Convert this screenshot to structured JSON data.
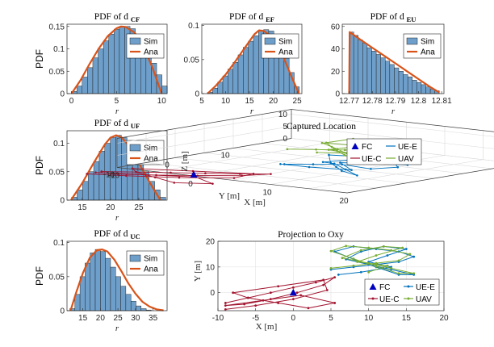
{
  "colors": {
    "hist": "#6e9fcb",
    "line": "#d95319",
    "uec": "#a2142f",
    "uee": "#0072bd",
    "uav": "#77ac30",
    "fc": "#0000c0"
  },
  "chart_data": [
    {
      "id": "cf",
      "type": "bar",
      "title": "PDF of d",
      "title_sub": "CF",
      "xlabel": "r",
      "ylabel": "PDF",
      "xlim": [
        -0.5,
        10.6
      ],
      "ylim": [
        0,
        0.155
      ],
      "xticks": [
        "0",
        "5",
        "10"
      ],
      "xtick_values": [
        0,
        5,
        10
      ],
      "yticks": [
        "0",
        "0.05",
        "0.1",
        "0.15"
      ],
      "ytick_values": [
        0,
        0.05,
        0.1,
        0.15
      ],
      "legend": [
        "Sim",
        "Ana"
      ],
      "legend_position": "top-right",
      "bin_start": 0,
      "bin_width": 0.59,
      "values": [
        0.005,
        0.017,
        0.037,
        0.058,
        0.08,
        0.1,
        0.118,
        0.133,
        0.144,
        0.15,
        0.15,
        0.145,
        0.133,
        0.115,
        0.093,
        0.068,
        0.042,
        0.017
      ],
      "curve": {
        "x": [
          0,
          1,
          2,
          3,
          4,
          5,
          5.5,
          6,
          7,
          8,
          9,
          10
        ],
        "y": [
          0,
          0.03,
          0.066,
          0.1,
          0.128,
          0.146,
          0.15,
          0.149,
          0.136,
          0.105,
          0.057,
          0
        ]
      }
    },
    {
      "id": "ef",
      "type": "bar",
      "title": "PDF of d",
      "title_sub": "EF",
      "xlabel": "r",
      "ylabel": "",
      "xlim": [
        5,
        26
      ],
      "ylim": [
        0,
        0.102
      ],
      "xticks": [
        "5",
        "10",
        "15",
        "20",
        "25"
      ],
      "xtick_values": [
        5,
        10,
        15,
        20,
        25
      ],
      "yticks": [
        "0",
        "0.05",
        "0.1"
      ],
      "ytick_values": [
        0,
        0.05,
        0.1
      ],
      "legend": [
        "Sim",
        "Ana"
      ],
      "legend_position": "top-right",
      "bin_start": 6.2,
      "bin_width": 1.07,
      "values": [
        0.002,
        0.008,
        0.017,
        0.026,
        0.036,
        0.046,
        0.057,
        0.068,
        0.077,
        0.085,
        0.092,
        0.094,
        0.092,
        0.086,
        0.07,
        0.052,
        0.031,
        0.01
      ],
      "curve": {
        "x": [
          6.2,
          8,
          10,
          12,
          14,
          16,
          17,
          18,
          20,
          22,
          24,
          25.4
        ],
        "y": [
          0,
          0.012,
          0.028,
          0.047,
          0.067,
          0.087,
          0.093,
          0.092,
          0.082,
          0.056,
          0.022,
          0
        ]
      }
    },
    {
      "id": "eu",
      "type": "bar",
      "title": "PDF of d",
      "title_sub": "EU",
      "xlabel": "r",
      "ylabel": "",
      "xlim": [
        12.767,
        12.811
      ],
      "ylim": [
        0,
        62
      ],
      "xticks": [
        "12.77",
        "12.78",
        "12.79",
        "12.8",
        "12.81"
      ],
      "xtick_values": [
        12.77,
        12.78,
        12.79,
        12.8,
        12.81
      ],
      "yticks": [
        "0",
        "20",
        "40",
        "60"
      ],
      "ytick_values": [
        0,
        20,
        40,
        60
      ],
      "legend": [
        "Sim",
        "Ana"
      ],
      "legend_position": "top-right",
      "bin_start": 12.77,
      "bin_width": 0.00195,
      "values": [
        55,
        52,
        48,
        45,
        41,
        38,
        35,
        32,
        29,
        26,
        23,
        20,
        17,
        15,
        12,
        10,
        8,
        6,
        4,
        2.5
      ],
      "curve": {
        "x": [
          12.77,
          12.7702,
          12.775,
          12.78,
          12.785,
          12.79,
          12.795,
          12.8,
          12.805,
          12.809
        ],
        "y": [
          0,
          55,
          48,
          41,
          34,
          27,
          20,
          13,
          6,
          1
        ]
      }
    },
    {
      "id": "uf",
      "type": "bar",
      "title": "PDF of d",
      "title_sub": "UF",
      "xlabel": "r",
      "ylabel": "PDF",
      "xlim": [
        12.3,
        30
      ],
      "ylim": [
        0,
        0.122
      ],
      "xticks": [
        "15",
        "20",
        "25"
      ],
      "xtick_values": [
        15,
        20,
        25
      ],
      "yticks": [
        "0",
        "0.05",
        "0.1"
      ],
      "ytick_values": [
        0,
        0.05,
        0.1
      ],
      "legend": [
        "Sim",
        "Ana"
      ],
      "legend_position": "top-right",
      "bin_start": 13.1,
      "bin_width": 0.98,
      "values": [
        0.005,
        0.018,
        0.033,
        0.05,
        0.068,
        0.086,
        0.1,
        0.11,
        0.114,
        0.11,
        0.1,
        0.086,
        0.068,
        0.05,
        0.033,
        0.018,
        0.005
      ],
      "curve": {
        "x": [
          13,
          15,
          17,
          19,
          20,
          21,
          22,
          23,
          25,
          27,
          28.8
        ],
        "y": [
          0,
          0.03,
          0.065,
          0.098,
          0.11,
          0.114,
          0.11,
          0.098,
          0.065,
          0.03,
          0
        ]
      }
    },
    {
      "id": "uc",
      "type": "bar",
      "title": "PDF of d",
      "title_sub": "UC",
      "xlabel": "r",
      "ylabel": "PDF",
      "xlim": [
        10.5,
        39
      ],
      "ylim": [
        0,
        0.102
      ],
      "xticks": [
        "15",
        "20",
        "25",
        "30",
        "35"
      ],
      "xtick_values": [
        15,
        20,
        25,
        30,
        35
      ],
      "yticks": [
        "0",
        "0.05",
        "0.1"
      ],
      "ytick_values": [
        0,
        0.05,
        0.1
      ],
      "legend": [
        "Sim",
        "Ana"
      ],
      "legend_position": "top-right",
      "bin_start": 11.3,
      "bin_width": 1.45,
      "values": [
        0.003,
        0.024,
        0.05,
        0.07,
        0.085,
        0.09,
        0.087,
        0.077,
        0.064,
        0.05,
        0.036,
        0.024,
        0.014,
        0.007,
        0.003,
        0.001
      ],
      "curve": {
        "x": [
          11.5,
          13,
          15,
          17,
          19,
          20.5,
          22,
          24,
          26,
          28,
          30,
          32,
          34,
          36,
          38
        ],
        "y": [
          0,
          0.025,
          0.055,
          0.078,
          0.089,
          0.09,
          0.087,
          0.075,
          0.058,
          0.04,
          0.025,
          0.013,
          0.006,
          0.002,
          0.0005
        ]
      }
    },
    {
      "id": "loc3d",
      "type": "scatter",
      "title": "Captured Location",
      "xlabel": "X [m]",
      "ylabel": "Y [m]",
      "zlabel": "Z [m]",
      "xticks": [
        "-10",
        "0",
        "10",
        "20"
      ],
      "xtick_values": [
        -10,
        0,
        10,
        20
      ],
      "yticks": [
        "10",
        "0",
        "-10"
      ],
      "ytick_values": [
        10,
        0,
        -10
      ],
      "zticks": [
        "0",
        "5",
        "10"
      ],
      "ztick_values": [
        0,
        5,
        10
      ],
      "legend": [
        "FC",
        "UE-E",
        "UE-C",
        "UAV"
      ],
      "legend_position": "top-right"
    },
    {
      "id": "oxy",
      "type": "scatter",
      "title": "Projection to Oxy",
      "xlabel": "X [m]",
      "ylabel": "Y [m]",
      "xlim": [
        -10,
        20
      ],
      "ylim": [
        -7,
        20
      ],
      "xticks": [
        "-10",
        "-5",
        "0",
        "5",
        "10",
        "15",
        "20"
      ],
      "xtick_values": [
        -10,
        -5,
        0,
        5,
        10,
        15,
        20
      ],
      "yticks": [
        "0",
        "10",
        "20"
      ],
      "ytick_values": [
        0,
        10,
        20
      ],
      "legend": [
        "FC",
        "UE-E",
        "UE-C",
        "UAV"
      ],
      "legend_position": "bottom-right",
      "fc": [
        0,
        0
      ],
      "series": [
        {
          "name": "UE-C",
          "x": [
            -9,
            -6,
            -3,
            0,
            3,
            5.5,
            4,
            0.5,
            -3,
            -6.5,
            -9,
            -4,
            1,
            5.5,
            2,
            -2,
            -6,
            -8,
            -2,
            4,
            4.5,
            0,
            -5,
            -9
          ],
          "y": [
            -4,
            -2,
            0,
            2,
            4,
            6,
            3,
            0,
            -2.5,
            -4.5,
            -5,
            -3,
            -1,
            -4,
            -6,
            -4,
            -2,
            0,
            2.5,
            5,
            1,
            -2.5,
            -5,
            -6.5
          ]
        },
        {
          "name": "UE-E",
          "x": [
            5,
            8,
            11,
            14,
            16,
            14,
            11,
            8,
            5.5,
            8,
            11,
            14,
            16,
            13,
            10,
            7,
            9,
            12,
            15,
            12.5,
            10,
            13,
            9,
            6
          ],
          "y": [
            9,
            10,
            11,
            12,
            14,
            16,
            17,
            18,
            16,
            13,
            10,
            7,
            7,
            9,
            11,
            13,
            16,
            18,
            17,
            14.5,
            12,
            10,
            8,
            7
          ]
        },
        {
          "name": "UAV",
          "x": [
            5,
            8,
            11,
            14,
            15.5,
            13,
            10,
            7,
            5,
            8,
            11,
            14,
            16,
            13,
            10,
            6.5,
            9,
            12,
            14.5,
            11,
            8.5,
            12.5,
            10
          ],
          "y": [
            9.5,
            10.5,
            11.5,
            12.5,
            15,
            16.5,
            17.5,
            18.2,
            16.2,
            13.2,
            10.2,
            7.5,
            7.5,
            9.5,
            11.5,
            13.5,
            16.5,
            18,
            17.5,
            14.5,
            12,
            10.5,
            8
          ]
        }
      ]
    }
  ]
}
